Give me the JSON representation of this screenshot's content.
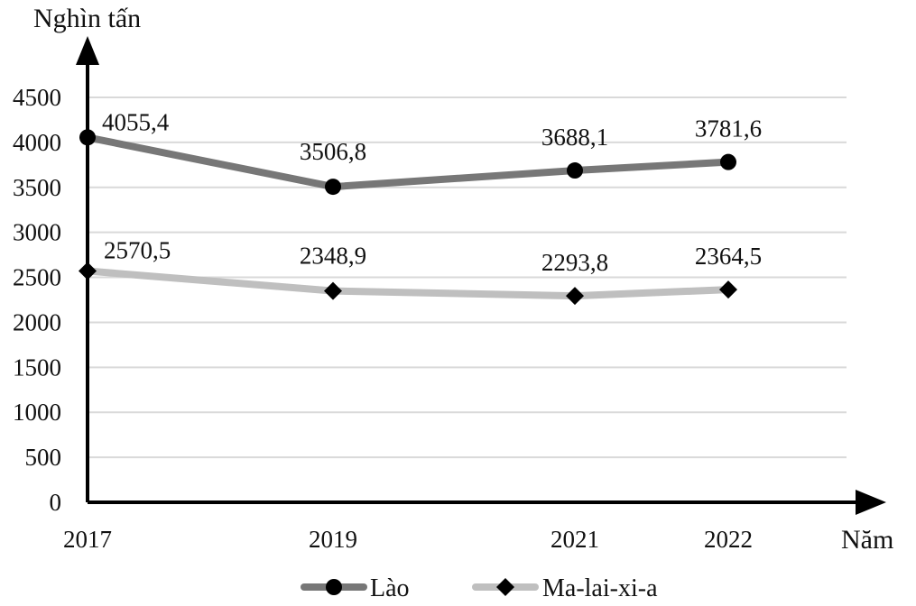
{
  "chart_data": {
    "type": "line",
    "xlabel": "Năm",
    "ylabel": "Nghìn tấn",
    "categories": [
      "2017",
      "2019",
      "2021",
      "2022"
    ],
    "y_ticks": [
      "0",
      "500",
      "1000",
      "1500",
      "2000",
      "2500",
      "3000",
      "3500",
      "4000",
      "4500"
    ],
    "ylim": [
      0,
      4500
    ],
    "grid": true,
    "legend_position": "bottom",
    "series": [
      {
        "name": "Lào",
        "values": [
          4055.4,
          3506.8,
          3688.1,
          3781.6
        ],
        "labels": [
          "4055,4",
          "3506,8",
          "3688,1",
          "3781,6"
        ],
        "color": "#777777",
        "marker": "circle"
      },
      {
        "name": "Ma-lai-xi-a",
        "values": [
          2570.5,
          2348.9,
          2293.8,
          2364.5
        ],
        "labels": [
          "2570,5",
          "2348,9",
          "2293,8",
          "2364,5"
        ],
        "color": "#bfbfbf",
        "marker": "diamond"
      }
    ]
  }
}
